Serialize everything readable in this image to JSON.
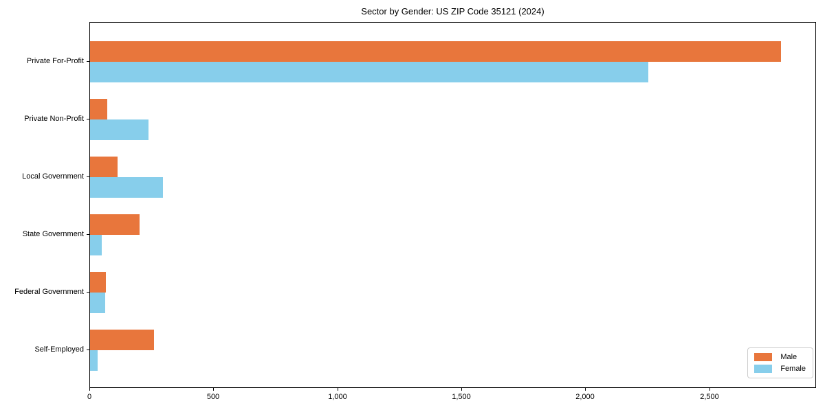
{
  "chart_data": {
    "type": "bar",
    "orientation": "horizontal",
    "title": "Sector by Gender: US ZIP Code 35121 (2024)",
    "categories": [
      "Private For-Profit",
      "Private Non-Profit",
      "Local Government",
      "State Government",
      "Federal Government",
      "Self-Employed"
    ],
    "series": [
      {
        "name": "Male",
        "color": "#E8763C",
        "values": [
          2785,
          70,
          110,
          200,
          64,
          257
        ]
      },
      {
        "name": "Female",
        "color": "#87CEEB",
        "values": [
          2250,
          235,
          295,
          47,
          61,
          30
        ]
      }
    ],
    "xlabel": "",
    "ylabel": "",
    "xlim": [
      0,
      2925
    ],
    "xticks": [
      {
        "value": 0,
        "label": "0"
      },
      {
        "value": 500,
        "label": "500"
      },
      {
        "value": 1000,
        "label": "1,000"
      },
      {
        "value": 1500,
        "label": "1,500"
      },
      {
        "value": 2000,
        "label": "2,000"
      },
      {
        "value": 2500,
        "label": "2,500"
      }
    ],
    "grid": false,
    "legend": {
      "position": "lower right",
      "entries": [
        "Male",
        "Female"
      ]
    },
    "colors": {
      "male": "#E8763C",
      "female": "#87CEEB",
      "spine": "#000000",
      "legend_border": "#cccccc",
      "background": "#ffffff"
    }
  }
}
